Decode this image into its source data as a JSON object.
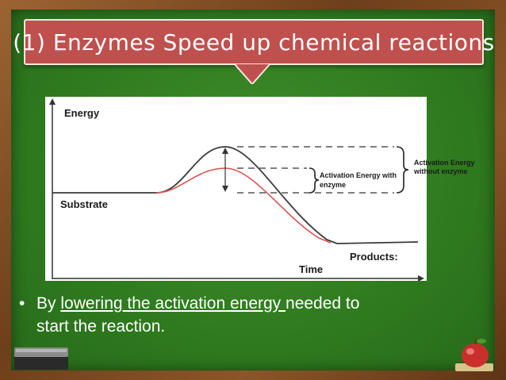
{
  "slide": {
    "title": "(1) Enzymes Speed up chemical reactions",
    "bullet": {
      "marker": "•",
      "prefix": "By ",
      "underlined": "lowering the activation energy ",
      "suffix": "needed to",
      "line2": "start the reaction."
    }
  },
  "diagram": {
    "labels": {
      "energy": "Energy",
      "substrate": "Substrate",
      "products": "Products:",
      "time": "Time",
      "activation_with": "Activation Energy with enzyme",
      "activation_without": "Activation Energy without enzyme"
    },
    "colors": {
      "without_enzyme_curve": "#3a3a3a",
      "with_enzyme_curve": "#d9534f",
      "board_green": "#2f7a1f",
      "banner_red": "#c0504d"
    }
  },
  "icons": {
    "eraser": "eraser-icon",
    "apple": "apple-icon",
    "arrow": "down-arrow-icon"
  }
}
